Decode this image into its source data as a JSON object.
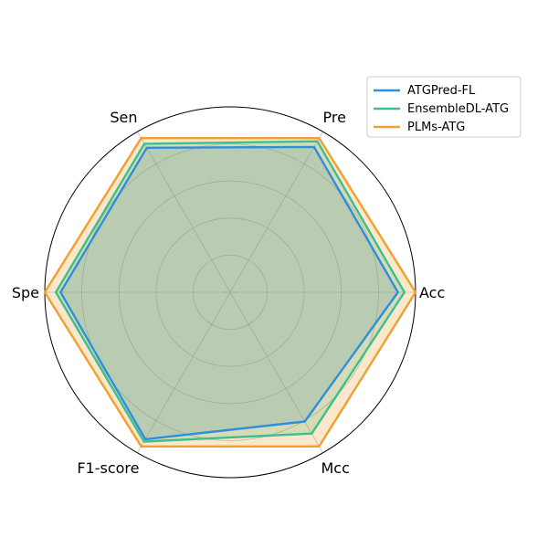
{
  "chart_data": {
    "type": "radar",
    "title": "",
    "axes": [
      "Acc",
      "Pre",
      "Sen",
      "Spe",
      "F1-score",
      "Mcc"
    ],
    "range": [
      0,
      1
    ],
    "grid": true,
    "legend_position": "top-right",
    "series": [
      {
        "name": "ATGPred-FL",
        "color": "#2e8fdc",
        "values": [
          0.905,
          0.905,
          0.9,
          0.915,
          0.915,
          0.805
        ]
      },
      {
        "name": "EnsembleDL-ATG",
        "color": "#3cc08e",
        "values": [
          0.94,
          0.94,
          0.925,
          0.94,
          0.93,
          0.88
        ]
      },
      {
        "name": "PLMs-ATG",
        "color": "#f0a030",
        "values": [
          1.0,
          0.96,
          0.96,
          1.0,
          0.96,
          0.96
        ]
      }
    ]
  }
}
